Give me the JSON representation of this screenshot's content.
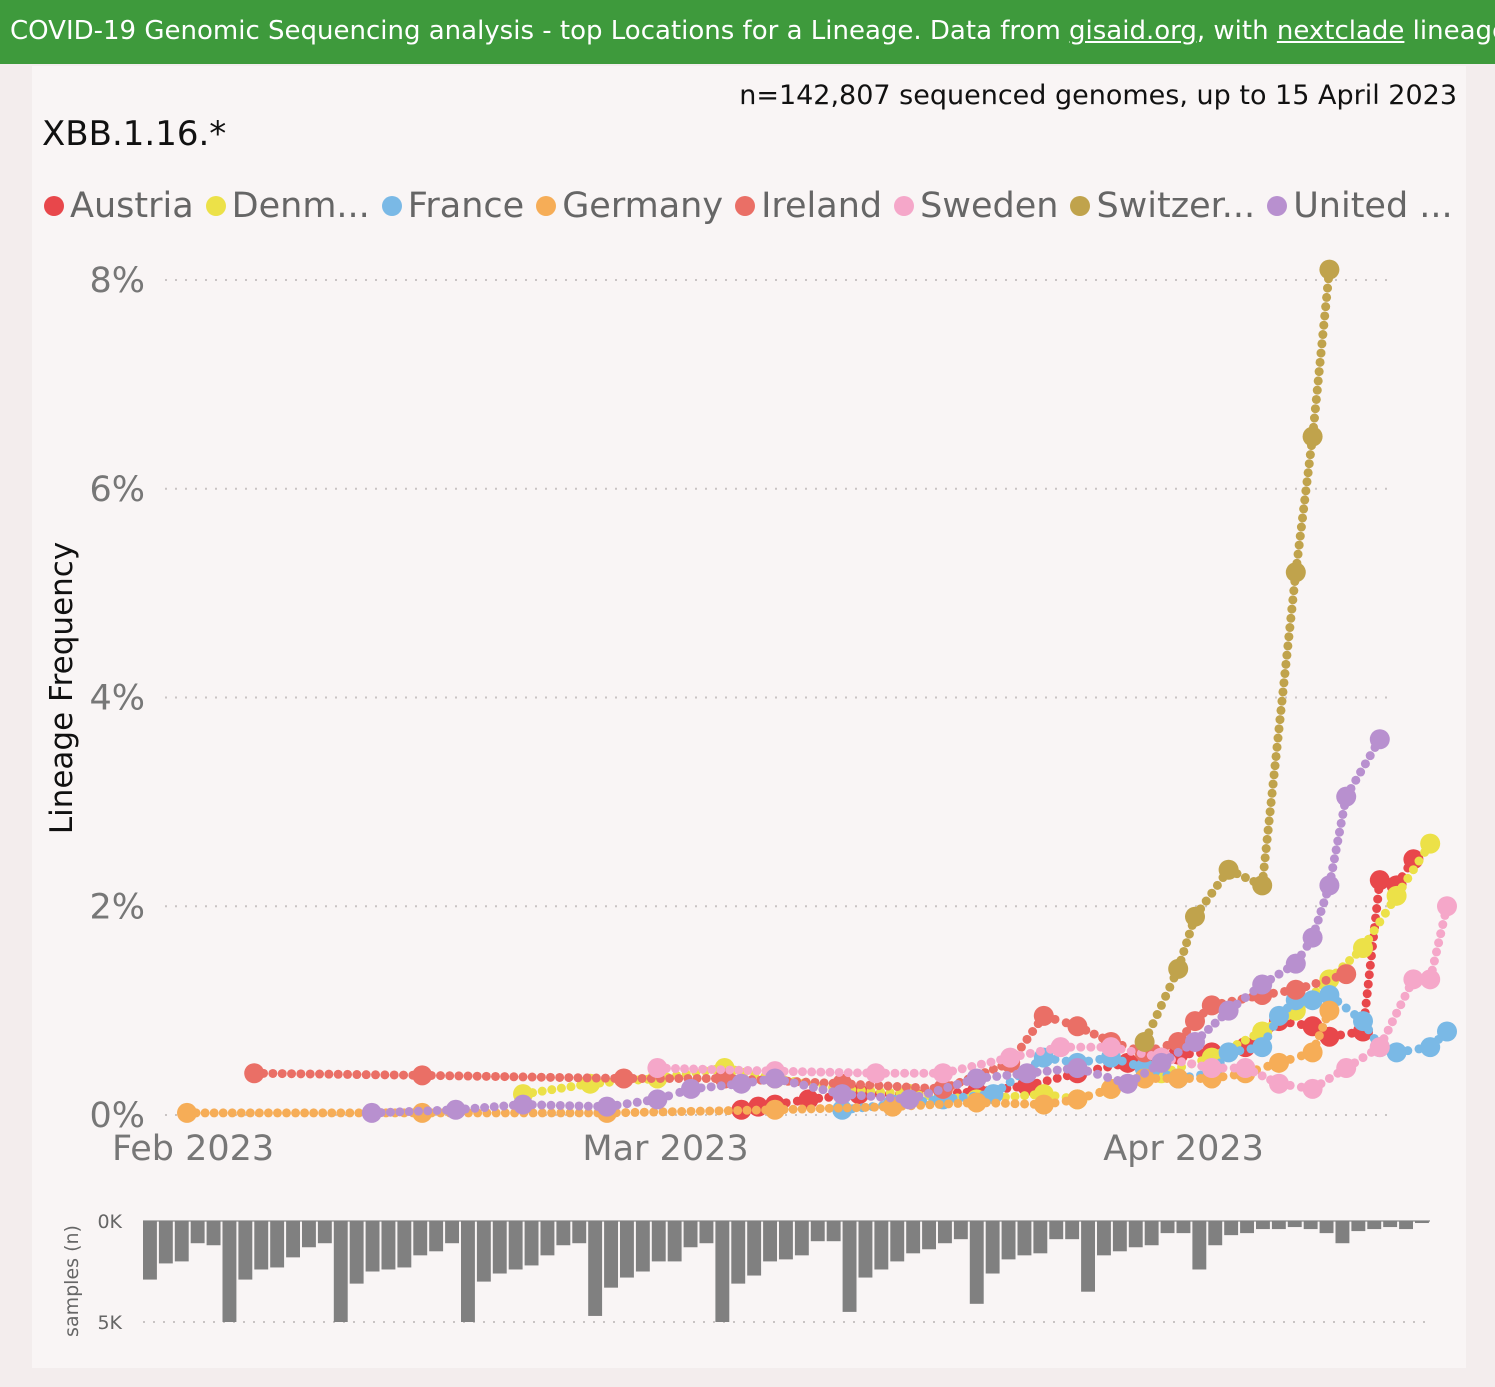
{
  "banner": {
    "prefix": "COVID-19 Genomic Sequencing analysis - top Locations for a Lineage. Data from ",
    "link1": "gisaid.org",
    "middle": ", with ",
    "link2": "nextclade",
    "suffix": " lineages Source fil"
  },
  "header": {
    "sample_count": "n=142,807 sequenced genomes, up to 15 April 2023",
    "lineage": "XBB.1.16.*"
  },
  "legend": [
    {
      "label": "Austria",
      "color": "#e8474b"
    },
    {
      "label": "Denm...",
      "color": "#ece148"
    },
    {
      "label": "France",
      "color": "#7ab9e6"
    },
    {
      "label": "Germany",
      "color": "#f6ad57"
    },
    {
      "label": "Ireland",
      "color": "#ea6f66"
    },
    {
      "label": "Sweden",
      "color": "#f5a7c9"
    },
    {
      "label": "Switzer...",
      "color": "#c0a34c"
    },
    {
      "label": "United ...",
      "color": "#b890cf"
    }
  ],
  "chart_data": [
    {
      "type": "line",
      "ylabel": "Lineage Frequency",
      "ylim": [
        0,
        8
      ],
      "ytick_labels": [
        "0%",
        "2%",
        "4%",
        "6%",
        "8%"
      ],
      "xtick_labels": [
        "Feb 2023",
        "Mar 2023",
        "Apr 2023"
      ],
      "grid": true,
      "legend_position": "top",
      "series": [
        {
          "name": "Austria",
          "color": "#e8474b",
          "points": [
            [
              "2023-03-06",
              0.05
            ],
            [
              "2023-03-07",
              0.08
            ],
            [
              "2023-03-08",
              0.1
            ],
            [
              "2023-03-10",
              0.15
            ],
            [
              "2023-03-13",
              0.2
            ],
            [
              "2023-03-16",
              0.2
            ],
            [
              "2023-03-20",
              0.22
            ],
            [
              "2023-03-23",
              0.28
            ],
            [
              "2023-03-26",
              0.4
            ],
            [
              "2023-03-29",
              0.5
            ],
            [
              "2023-03-31",
              0.55
            ],
            [
              "2023-04-01",
              0.58
            ],
            [
              "2023-04-03",
              0.6
            ],
            [
              "2023-04-05",
              0.65
            ],
            [
              "2023-04-07",
              0.9
            ],
            [
              "2023-04-09",
              0.85
            ],
            [
              "2023-04-10",
              0.75
            ],
            [
              "2023-04-12",
              0.8
            ],
            [
              "2023-04-13",
              2.25
            ],
            [
              "2023-04-14",
              2.2
            ],
            [
              "2023-04-15",
              2.45
            ]
          ]
        },
        {
          "name": "Denm...",
          "color": "#ece148",
          "points": [
            [
              "2023-02-21",
              0.2
            ],
            [
              "2023-02-25",
              0.3
            ],
            [
              "2023-03-01",
              0.35
            ],
            [
              "2023-03-05",
              0.45
            ],
            [
              "2023-03-08",
              0.35
            ],
            [
              "2023-03-12",
              0.25
            ],
            [
              "2023-03-16",
              0.2
            ],
            [
              "2023-03-20",
              0.15
            ],
            [
              "2023-03-24",
              0.2
            ],
            [
              "2023-03-26",
              0.15
            ],
            [
              "2023-03-28",
              0.25
            ],
            [
              "2023-03-31",
              0.4
            ],
            [
              "2023-04-03",
              0.55
            ],
            [
              "2023-04-06",
              0.8
            ],
            [
              "2023-04-08",
              1.0
            ],
            [
              "2023-04-10",
              1.3
            ],
            [
              "2023-04-12",
              1.6
            ],
            [
              "2023-04-14",
              2.1
            ],
            [
              "2023-04-16",
              2.6
            ]
          ]
        },
        {
          "name": "France",
          "color": "#7ab9e6",
          "points": [
            [
              "2023-03-12",
              0.05
            ],
            [
              "2023-03-15",
              0.1
            ],
            [
              "2023-03-18",
              0.15
            ],
            [
              "2023-03-21",
              0.2
            ],
            [
              "2023-03-24",
              0.55
            ],
            [
              "2023-03-26",
              0.5
            ],
            [
              "2023-03-28",
              0.55
            ],
            [
              "2023-03-30",
              0.45
            ],
            [
              "2023-04-01",
              0.35
            ],
            [
              "2023-04-03",
              0.4
            ],
            [
              "2023-04-04",
              0.6
            ],
            [
              "2023-04-06",
              0.65
            ],
            [
              "2023-04-07",
              0.95
            ],
            [
              "2023-04-08",
              1.1
            ],
            [
              "2023-04-09",
              1.1
            ],
            [
              "2023-04-10",
              1.15
            ],
            [
              "2023-04-12",
              0.9
            ],
            [
              "2023-04-13",
              0.65
            ],
            [
              "2023-04-14",
              0.6
            ],
            [
              "2023-04-16",
              0.65
            ],
            [
              "2023-04-17",
              0.8
            ]
          ]
        },
        {
          "name": "Germany",
          "color": "#f6ad57",
          "points": [
            [
              "2023-02-01",
              0.02
            ],
            [
              "2023-02-15",
              0.02
            ],
            [
              "2023-02-26",
              0.02
            ],
            [
              "2023-03-08",
              0.05
            ],
            [
              "2023-03-15",
              0.08
            ],
            [
              "2023-03-20",
              0.12
            ],
            [
              "2023-03-24",
              0.1
            ],
            [
              "2023-03-26",
              0.15
            ],
            [
              "2023-03-28",
              0.25
            ],
            [
              "2023-03-30",
              0.35
            ],
            [
              "2023-04-01",
              0.35
            ],
            [
              "2023-04-03",
              0.35
            ],
            [
              "2023-04-05",
              0.4
            ],
            [
              "2023-04-07",
              0.5
            ],
            [
              "2023-04-09",
              0.6
            ],
            [
              "2023-04-10",
              1.0
            ]
          ]
        },
        {
          "name": "Ireland",
          "color": "#ea6f66",
          "points": [
            [
              "2023-02-05",
              0.4
            ],
            [
              "2023-02-15",
              0.38
            ],
            [
              "2023-02-27",
              0.35
            ],
            [
              "2023-03-05",
              0.35
            ],
            [
              "2023-03-12",
              0.3
            ],
            [
              "2023-03-18",
              0.25
            ],
            [
              "2023-03-22",
              0.5
            ],
            [
              "2023-03-24",
              0.95
            ],
            [
              "2023-03-26",
              0.85
            ],
            [
              "2023-03-28",
              0.7
            ],
            [
              "2023-03-30",
              0.6
            ],
            [
              "2023-04-01",
              0.7
            ],
            [
              "2023-04-02",
              0.9
            ],
            [
              "2023-04-03",
              1.05
            ],
            [
              "2023-04-06",
              1.15
            ],
            [
              "2023-04-08",
              1.2
            ],
            [
              "2023-04-11",
              1.35
            ]
          ]
        },
        {
          "name": "Sweden",
          "color": "#f5a7c9",
          "points": [
            [
              "2023-03-01",
              0.45
            ],
            [
              "2023-03-08",
              0.42
            ],
            [
              "2023-03-14",
              0.4
            ],
            [
              "2023-03-18",
              0.4
            ],
            [
              "2023-03-22",
              0.55
            ],
            [
              "2023-03-25",
              0.65
            ],
            [
              "2023-03-28",
              0.65
            ],
            [
              "2023-03-31",
              0.55
            ],
            [
              "2023-04-03",
              0.45
            ],
            [
              "2023-04-05",
              0.45
            ],
            [
              "2023-04-07",
              0.3
            ],
            [
              "2023-04-09",
              0.25
            ],
            [
              "2023-04-11",
              0.45
            ],
            [
              "2023-04-13",
              0.65
            ],
            [
              "2023-04-15",
              1.3
            ],
            [
              "2023-04-16",
              1.3
            ],
            [
              "2023-04-17",
              2.0
            ]
          ]
        },
        {
          "name": "Switzer...",
          "color": "#c0a34c",
          "points": [
            [
              "2023-03-30",
              0.7
            ],
            [
              "2023-04-01",
              1.4
            ],
            [
              "2023-04-02",
              1.9
            ],
            [
              "2023-04-04",
              2.35
            ],
            [
              "2023-04-06",
              2.2
            ],
            [
              "2023-04-08",
              5.2
            ],
            [
              "2023-04-09",
              6.5
            ],
            [
              "2023-04-10",
              8.1
            ]
          ]
        },
        {
          "name": "United ...",
          "color": "#b890cf",
          "points": [
            [
              "2023-02-12",
              0.02
            ],
            [
              "2023-02-17",
              0.05
            ],
            [
              "2023-02-21",
              0.1
            ],
            [
              "2023-02-26",
              0.08
            ],
            [
              "2023-03-01",
              0.15
            ],
            [
              "2023-03-03",
              0.25
            ],
            [
              "2023-03-06",
              0.3
            ],
            [
              "2023-03-08",
              0.35
            ],
            [
              "2023-03-12",
              0.2
            ],
            [
              "2023-03-16",
              0.15
            ],
            [
              "2023-03-20",
              0.35
            ],
            [
              "2023-03-23",
              0.4
            ],
            [
              "2023-03-26",
              0.45
            ],
            [
              "2023-03-29",
              0.3
            ],
            [
              "2023-03-31",
              0.5
            ],
            [
              "2023-04-02",
              0.7
            ],
            [
              "2023-04-04",
              1.0
            ],
            [
              "2023-04-06",
              1.25
            ],
            [
              "2023-04-08",
              1.45
            ],
            [
              "2023-04-09",
              1.7
            ],
            [
              "2023-04-10",
              2.2
            ],
            [
              "2023-04-11",
              3.05
            ],
            [
              "2023-04-13",
              3.6
            ]
          ]
        }
      ]
    },
    {
      "type": "bar",
      "ylabel": "samples (n)",
      "ytick_labels": [
        "0K",
        "5K"
      ],
      "ylim": [
        0,
        5000
      ],
      "orientation": "bars hang down from 0K toward 5K",
      "values": [
        2900,
        2100,
        2000,
        1100,
        1200,
        5000,
        2900,
        2400,
        2300,
        1800,
        1300,
        1100,
        5000,
        3100,
        2500,
        2400,
        2300,
        1700,
        1500,
        1100,
        5000,
        3000,
        2600,
        2400,
        2200,
        1700,
        1200,
        1100,
        4700,
        3300,
        2800,
        2500,
        2000,
        2000,
        1300,
        1100,
        5000,
        3100,
        2700,
        2000,
        1900,
        1700,
        1000,
        1000,
        4500,
        2800,
        2400,
        2000,
        1600,
        1400,
        1100,
        900,
        4100,
        2600,
        1900,
        1700,
        1600,
        900,
        900,
        3500,
        1700,
        1500,
        1300,
        1200,
        600,
        600,
        2400,
        1200,
        700,
        600,
        400,
        400,
        300,
        400,
        600,
        1100,
        500,
        400,
        300,
        400,
        100
      ]
    }
  ]
}
